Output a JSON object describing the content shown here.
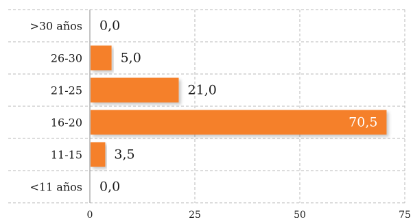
{
  "chart_data": {
    "type": "bar",
    "orientation": "horizontal",
    "title": "",
    "xlabel": "",
    "ylabel": "",
    "categories": [
      ">30 años",
      "26-30",
      "21-25",
      "16-20",
      "11-15",
      "<11 años"
    ],
    "values": [
      0.0,
      5.0,
      21.0,
      70.5,
      3.5,
      0.0
    ],
    "value_labels": [
      "0,0",
      "5,0",
      "21,0",
      "70,5",
      "3,5",
      "0,0"
    ],
    "xlim": [
      0,
      75
    ],
    "xticks": [
      0,
      25,
      50,
      75
    ],
    "xtick_labels": [
      "0",
      "25",
      "50",
      "75"
    ],
    "grid": true,
    "legend": "none",
    "colors": {
      "bar": "#f5802a",
      "grid": "#b8b8b8",
      "axis": "#888888"
    }
  }
}
